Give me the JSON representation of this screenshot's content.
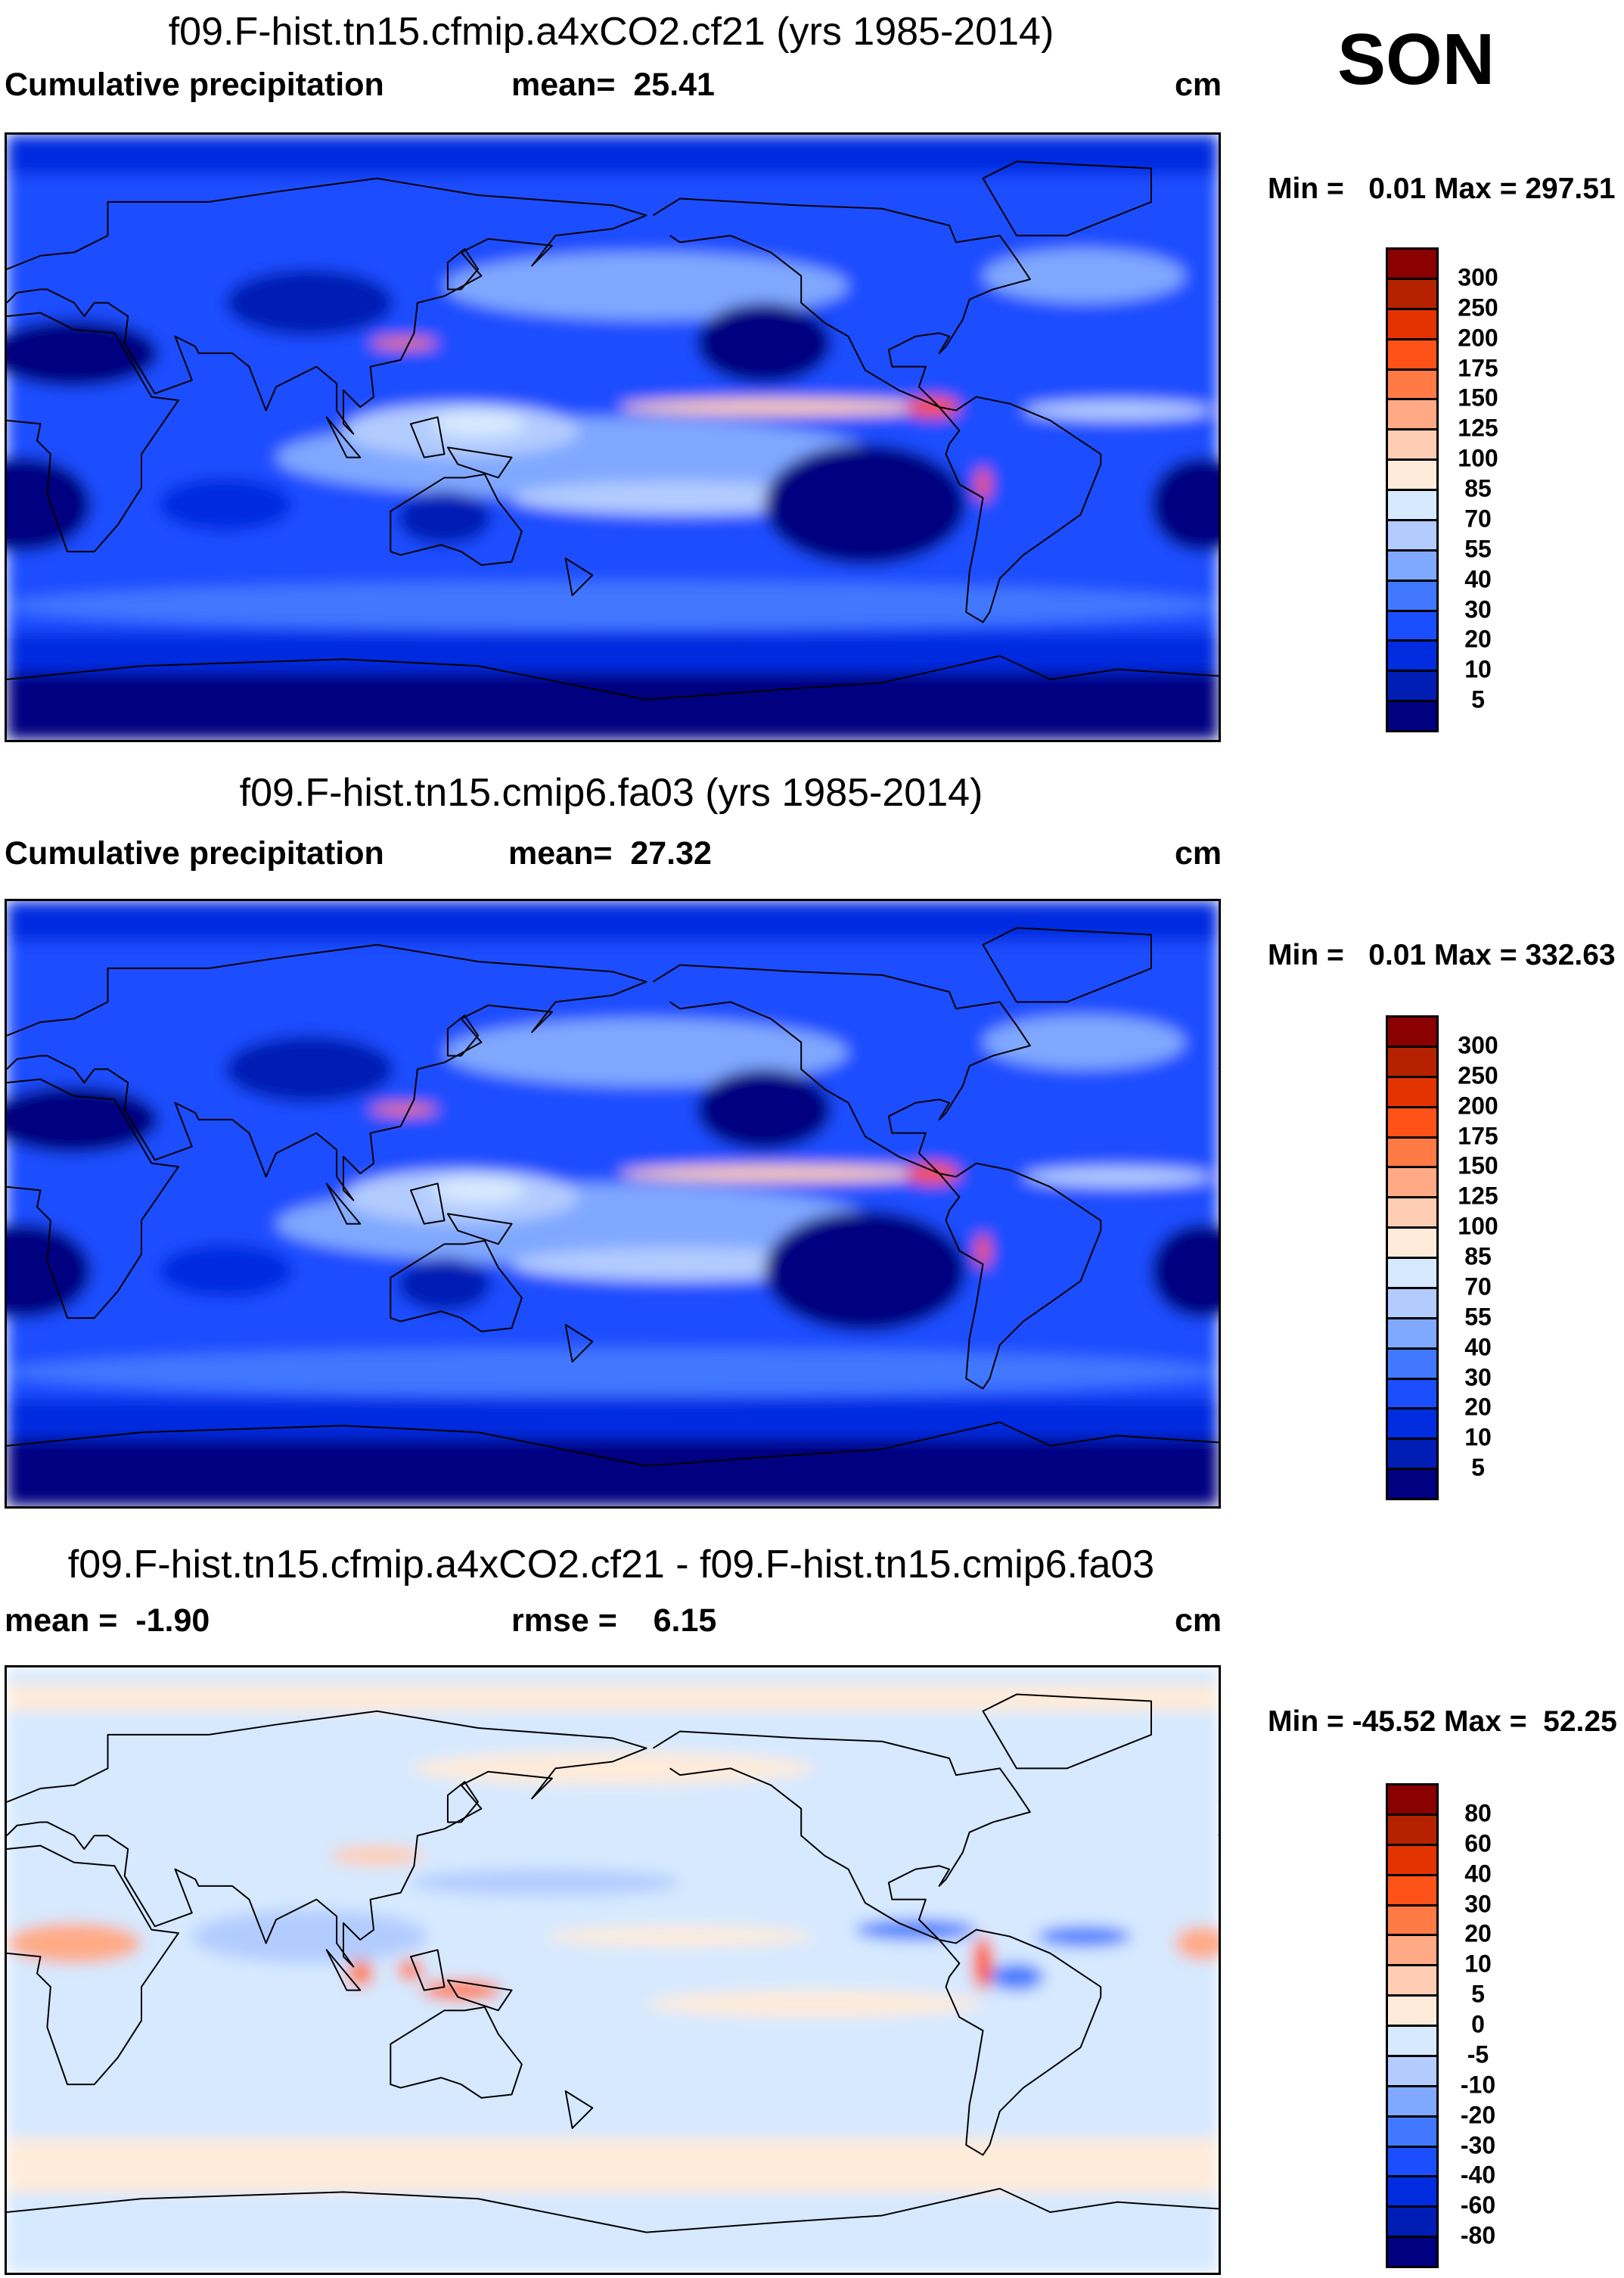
{
  "season": "SON",
  "panels": [
    {
      "title": "f09.F-hist.tn15.cfmip.a4xCO2.cf21 (yrs 1985-2014)",
      "left_label": "Cumulative precipitation",
      "center_label": "mean=  25.41",
      "units": "cm",
      "minmax": "Min =   0.01 Max = 297.51",
      "colorbar_labels": [
        "300",
        "250",
        "200",
        "175",
        "150",
        "125",
        "100",
        "85",
        "70",
        "55",
        "40",
        "30",
        "20",
        "10",
        "5"
      ]
    },
    {
      "title": "f09.F-hist.tn15.cmip6.fa03 (yrs 1985-2014)",
      "left_label": "Cumulative precipitation",
      "center_label": "mean=  27.32",
      "units": "cm",
      "minmax": "Min =   0.01 Max = 332.63",
      "colorbar_labels": [
        "300",
        "250",
        "200",
        "175",
        "150",
        "125",
        "100",
        "85",
        "70",
        "55",
        "40",
        "30",
        "20",
        "10",
        "5"
      ]
    },
    {
      "title": "f09.F-hist.tn15.cfmip.a4xCO2.cf21 - f09.F-hist.tn15.cmip6.fa03",
      "left_label": "mean =  -1.90",
      "center_label": "rmse =    6.15",
      "units": "cm",
      "minmax": "Min = -45.52 Max =  52.25",
      "colorbar_labels": [
        "80",
        "60",
        "40",
        "30",
        "20",
        "10",
        "5",
        "0",
        "-5",
        "-10",
        "-20",
        "-30",
        "-40",
        "-60",
        "-80"
      ]
    }
  ],
  "colors": [
    "#8b0000",
    "#b52200",
    "#e33400",
    "#ff5219",
    "#ff7a45",
    "#ffaa85",
    "#ffcdb4",
    "#ffebd9",
    "#d6e9ff",
    "#b3ccff",
    "#80a8ff",
    "#4278ff",
    "#1a4eff",
    "#002ce0",
    "#001db4",
    "#000080"
  ],
  "chart_data": [
    {
      "type": "heatmap",
      "title": "f09.F-hist.tn15.cfmip.a4xCO2.cf21 (yrs 1985-2014)",
      "variable": "Cumulative precipitation",
      "units": "cm",
      "season": "SON",
      "mean": 25.41,
      "min": 0.01,
      "max": 297.51,
      "levels": [
        5,
        10,
        20,
        30,
        40,
        55,
        70,
        85,
        100,
        125,
        150,
        175,
        200,
        250,
        300
      ]
    },
    {
      "type": "heatmap",
      "title": "f09.F-hist.tn15.cmip6.fa03 (yrs 1985-2014)",
      "variable": "Cumulative precipitation",
      "units": "cm",
      "season": "SON",
      "mean": 27.32,
      "min": 0.01,
      "max": 332.63,
      "levels": [
        5,
        10,
        20,
        30,
        40,
        55,
        70,
        85,
        100,
        125,
        150,
        175,
        200,
        250,
        300
      ]
    },
    {
      "type": "heatmap",
      "title": "f09.F-hist.tn15.cfmip.a4xCO2.cf21 - f09.F-hist.tn15.cmip6.fa03",
      "units": "cm",
      "season": "SON",
      "mean": -1.9,
      "rmse": 6.15,
      "min": -45.52,
      "max": 52.25,
      "levels": [
        -80,
        -60,
        -40,
        -30,
        -20,
        -10,
        -5,
        0,
        5,
        10,
        20,
        30,
        40,
        60,
        80
      ]
    }
  ]
}
